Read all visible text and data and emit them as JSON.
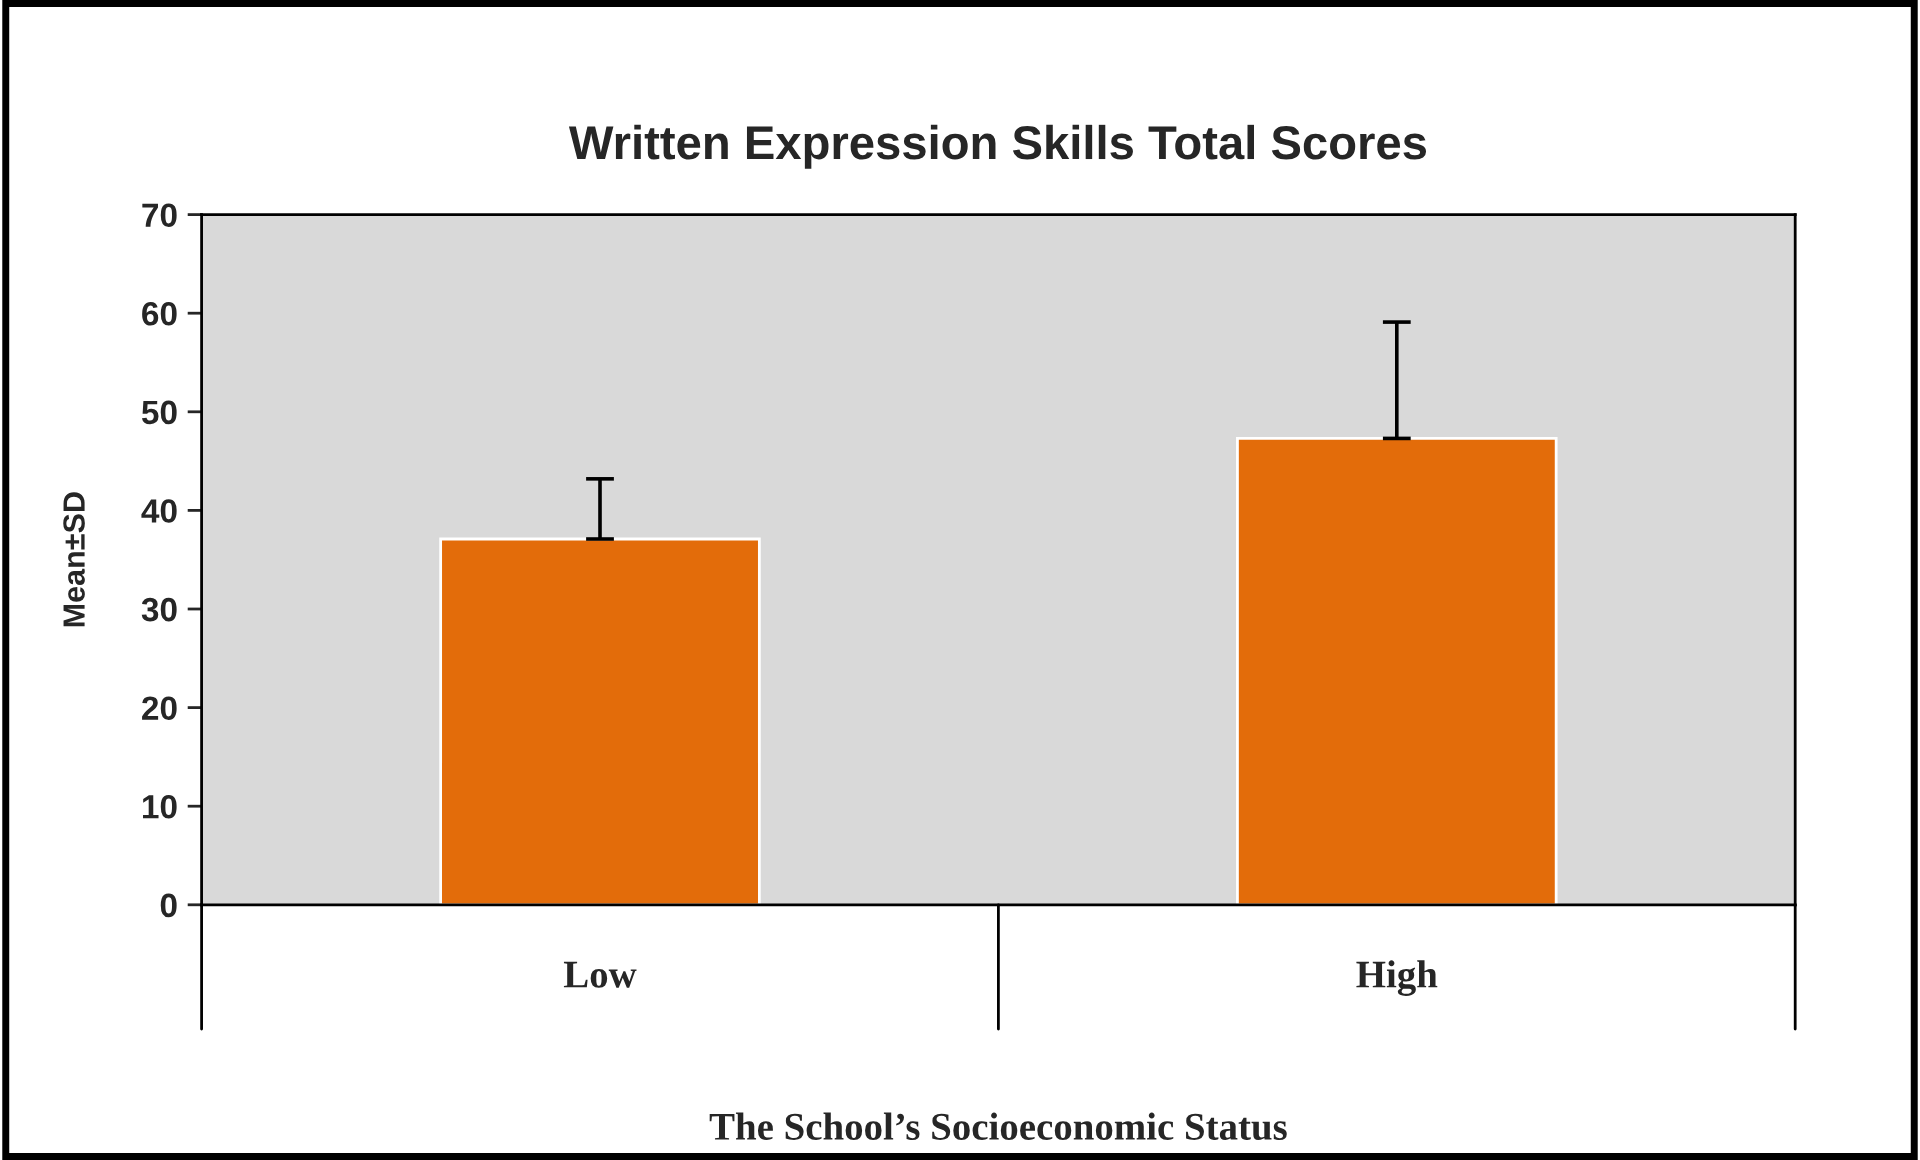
{
  "chart_data": {
    "type": "bar",
    "title": "Written Expression Skills Total Scores",
    "xlabel": "The School’s Socioeconomic Status",
    "ylabel": "Mean±SD",
    "categories": [
      "Low",
      "High"
    ],
    "series": [
      {
        "color": "#e36c0a",
        "values": [
          37.1,
          47.3
        ],
        "errors": [
          6.1,
          11.8
        ]
      }
    ],
    "ylim": [
      0,
      70
    ],
    "yticks": [
      0,
      10,
      20,
      30,
      40,
      50,
      60,
      70
    ],
    "grid": false,
    "legend": false
  }
}
